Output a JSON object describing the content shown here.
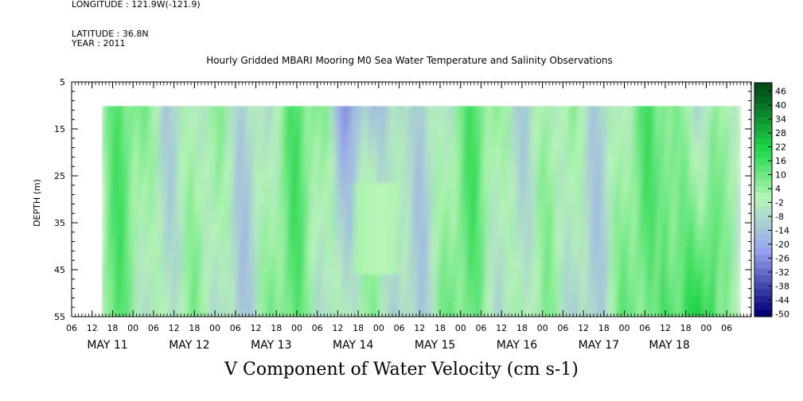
{
  "meta": {
    "longitude": "LONGITUDE : 121.9W(-121.9)",
    "latitude": "LATITUDE : 36.8N",
    "year": "YEAR : 2011"
  },
  "chart_data": {
    "type": "heatmap",
    "title": "Hourly Gridded MBARI Mooring M0 Sea Water Temperature and Salinity Observations",
    "xlabel": "V Component of Water Velocity (cm s-1)",
    "ylabel": "DEPTH (m)",
    "ylim": [
      55,
      5
    ],
    "y_ticks": [
      5,
      15,
      25,
      35,
      45,
      55
    ],
    "x_hour_ticks": [
      "06",
      "12",
      "18",
      "00",
      "06",
      "12",
      "18",
      "00",
      "06",
      "12",
      "18",
      "00",
      "06",
      "12",
      "18",
      "00",
      "06",
      "12",
      "18",
      "00",
      "06",
      "12",
      "18",
      "00",
      "06",
      "12",
      "18",
      "00",
      "06",
      "12",
      "18",
      "00",
      "06"
    ],
    "x_day_labels": [
      "MAY 11",
      "MAY 12",
      "MAY 13",
      "MAY 14",
      "MAY 15",
      "MAY 16",
      "MAY 17",
      "MAY 18"
    ],
    "data_depth_range": [
      10,
      55
    ],
    "colorbar": {
      "labels": [
        "46",
        "40",
        "34",
        "28",
        "22",
        "16",
        "10",
        "4",
        "-2",
        "-8",
        "-14",
        "-20",
        "-26",
        "-32",
        "-38",
        "-44",
        "-50"
      ],
      "high_color": "#004d1a",
      "mid_color": "#b6f5b6",
      "low_color": "#00007a"
    }
  }
}
